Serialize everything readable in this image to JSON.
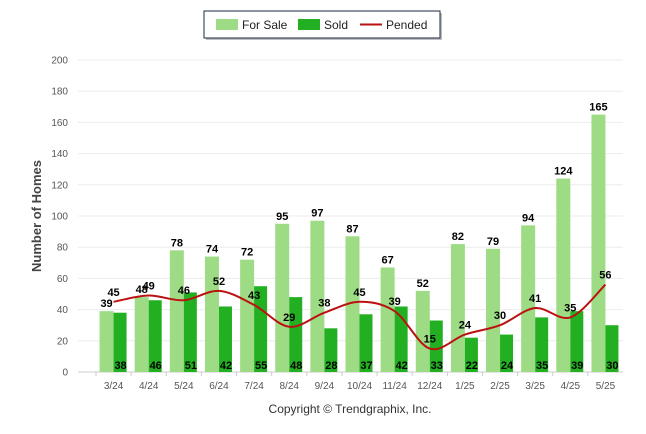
{
  "chart_data": {
    "type": "bar",
    "title": "",
    "xlabel": "",
    "ylabel": "Number of Homes",
    "ylim": [
      0,
      200
    ],
    "yticks": [
      0,
      20,
      40,
      60,
      80,
      100,
      120,
      140,
      160,
      180,
      200
    ],
    "grid": true,
    "legend_position": "top-center",
    "categories": [
      "3/24",
      "4/24",
      "5/24",
      "6/24",
      "7/24",
      "8/24",
      "9/24",
      "10/24",
      "11/24",
      "12/24",
      "1/25",
      "2/25",
      "3/25",
      "4/25",
      "5/25"
    ],
    "series": [
      {
        "name": "For Sale",
        "kind": "bar",
        "color": "#9ddc84",
        "values": [
          39,
          48,
          78,
          74,
          72,
          95,
          97,
          87,
          67,
          52,
          82,
          79,
          94,
          124,
          165
        ]
      },
      {
        "name": "Sold",
        "kind": "bar",
        "color": "#22b022",
        "values": [
          38,
          46,
          51,
          42,
          55,
          48,
          28,
          37,
          42,
          33,
          22,
          24,
          35,
          39,
          30
        ]
      },
      {
        "name": "Pended",
        "kind": "line",
        "color": "#bb1111",
        "values": [
          45,
          49,
          46,
          52,
          43,
          29,
          38,
          45,
          39,
          15,
          24,
          30,
          41,
          35,
          56
        ]
      }
    ],
    "footer": "Copyright © Trendgraphix, Inc."
  }
}
